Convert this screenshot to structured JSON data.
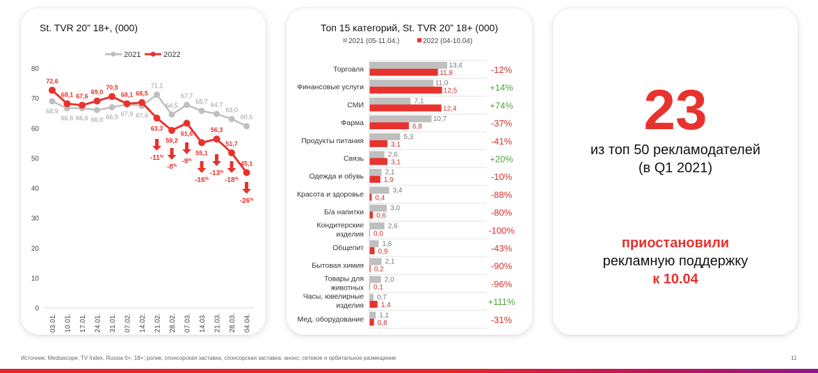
{
  "chart_data": [
    {
      "type": "line",
      "title": "St. TVR 20” 18+, (000)",
      "categories": [
        "03.01.",
        "10.01.",
        "17.01.",
        "24.01.",
        "31.01.",
        "07.02.",
        "14.02.",
        "21.02.",
        "28.02.",
        "07.03.",
        "14.03.",
        "21.03.",
        "28.03.",
        "04.04."
      ],
      "yticks": [
        "0",
        "10",
        "20",
        "30",
        "40",
        "50",
        "60",
        "70",
        "80"
      ],
      "ylim": [
        0,
        80
      ],
      "legend_position": "top",
      "series": [
        {
          "name": "2021",
          "color": "#bfbfbf",
          "values": [
            68.9,
            66.6,
            66.6,
            66.0,
            66.9,
            67.9,
            67.4,
            71.1,
            64.5,
            67.7,
            65.7,
            64.7,
            63.0,
            60.6
          ],
          "labels": [
            "68,9",
            "66,6",
            "66,6",
            "66,0",
            "66,9",
            "67,9",
            "67,4",
            "71,1",
            "64,5",
            "67,7",
            "65,7",
            "64,7",
            "63,0",
            "60,6"
          ]
        },
        {
          "name": "2022",
          "color": "#e8322d",
          "values": [
            72.6,
            68.1,
            67.6,
            69.0,
            70.5,
            68.1,
            68.5,
            63.3,
            59.2,
            61.6,
            55.1,
            56.3,
            51.7,
            45.1
          ],
          "labels": [
            "72,6",
            "68,1",
            "67,6",
            "69,0",
            "70,5",
            "68,1",
            "68,5",
            "63,3",
            "59,2",
            "61,6",
            "55,1",
            "56,3",
            "51,7",
            "45,1"
          ]
        }
      ],
      "annotations": [
        {
          "index": 7,
          "text": "-11",
          "unit": "%"
        },
        {
          "index": 8,
          "text": "-8",
          "unit": "%"
        },
        {
          "index": 9,
          "text": "-9",
          "unit": "%"
        },
        {
          "index": 10,
          "text": "-16",
          "unit": "%"
        },
        {
          "index": 11,
          "text": "-13",
          "unit": "%"
        },
        {
          "index": 12,
          "text": "-18",
          "unit": "%"
        },
        {
          "index": 13,
          "text": "-26",
          "unit": "%"
        }
      ]
    },
    {
      "type": "bar",
      "orientation": "horizontal",
      "title": "Топ 15 категорий, St. TVR 20” 18+ (000)",
      "legend_position": "top",
      "series": [
        {
          "name": "2021 (05-11.04.)",
          "color": "#bfbfbf"
        },
        {
          "name": "2022 (04-10.04)",
          "color": "#e8322d"
        }
      ],
      "positive_color": "#4ea23a",
      "negative_color": "#d9302c",
      "rows": [
        {
          "category": [
            "Торговля"
          ],
          "v2021": 13.4,
          "v2022": 11.8,
          "l2021": "13,4",
          "l2022": "11,8",
          "change": "-12%"
        },
        {
          "category": [
            "Финансовые услуги"
          ],
          "v2021": 11.0,
          "v2022": 12.5,
          "l2021": "11,0",
          "l2022": "12,5",
          "change": "+14%"
        },
        {
          "category": [
            "СМИ"
          ],
          "v2021": 7.1,
          "v2022": 12.4,
          "l2021": "7,1",
          "l2022": "12,4",
          "change": "+74%"
        },
        {
          "category": [
            "Фарма"
          ],
          "v2021": 10.7,
          "v2022": 6.8,
          "l2021": "10,7",
          "l2022": "6,8",
          "change": "-37%"
        },
        {
          "category": [
            "Продукты питания"
          ],
          "v2021": 5.3,
          "v2022": 3.1,
          "l2021": "5,3",
          "l2022": "3,1",
          "change": "-41%"
        },
        {
          "category": [
            "Связь"
          ],
          "v2021": 2.6,
          "v2022": 3.1,
          "l2021": "2,6",
          "l2022": "3,1",
          "change": "+20%"
        },
        {
          "category": [
            "Одежда и обувь"
          ],
          "v2021": 2.1,
          "v2022": 1.9,
          "l2021": "2,1",
          "l2022": "1,9",
          "change": "-10%"
        },
        {
          "category": [
            "Красота и здоровье"
          ],
          "v2021": 3.4,
          "v2022": 0.4,
          "l2021": "3,4",
          "l2022": "0,4",
          "change": "-88%"
        },
        {
          "category": [
            "Б/а напитки"
          ],
          "v2021": 3.0,
          "v2022": 0.6,
          "l2021": "3,0",
          "l2022": "0,6",
          "change": "-80%"
        },
        {
          "category": [
            "Кондитерские",
            "изделия"
          ],
          "v2021": 2.6,
          "v2022": 0.0,
          "l2021": "2,6",
          "l2022": "0,0",
          "change": "-100%"
        },
        {
          "category": [
            "Общепит"
          ],
          "v2021": 1.6,
          "v2022": 0.9,
          "l2021": "1,6",
          "l2022": "0,9",
          "change": "-43%"
        },
        {
          "category": [
            "Бытовая химия"
          ],
          "v2021": 2.1,
          "v2022": 0.2,
          "l2021": "2,1",
          "l2022": "0,2",
          "change": "-90%"
        },
        {
          "category": [
            "Товары для",
            "животных"
          ],
          "v2021": 2.0,
          "v2022": 0.1,
          "l2021": "2,0",
          "l2022": "0,1",
          "change": "-96%"
        },
        {
          "category": [
            "Часы, ювелирные",
            "изделия"
          ],
          "v2021": 0.7,
          "v2022": 1.4,
          "l2021": "0,7",
          "l2022": "1,4",
          "change": "+111%"
        },
        {
          "category": [
            "Мед. оборудование"
          ],
          "v2021": 1.1,
          "v2022": 0.8,
          "l2021": "1,1",
          "l2022": "0,8",
          "change": "-31%"
        }
      ]
    }
  ],
  "summary": {
    "number": "23",
    "line1": "из топ 50 рекламодателей",
    "line2": "(в Q1 2021)",
    "action": "приостановили",
    "line3": "рекламную поддержку",
    "date": "к 10.04"
  },
  "footer": {
    "source": "Источник: Mediascope, TV Index,  Russia 0+, 18+; ролик, спонсорская заставка, спонсорская заставка: анонс; сетевое и орбитальное размещение",
    "page": "11"
  }
}
